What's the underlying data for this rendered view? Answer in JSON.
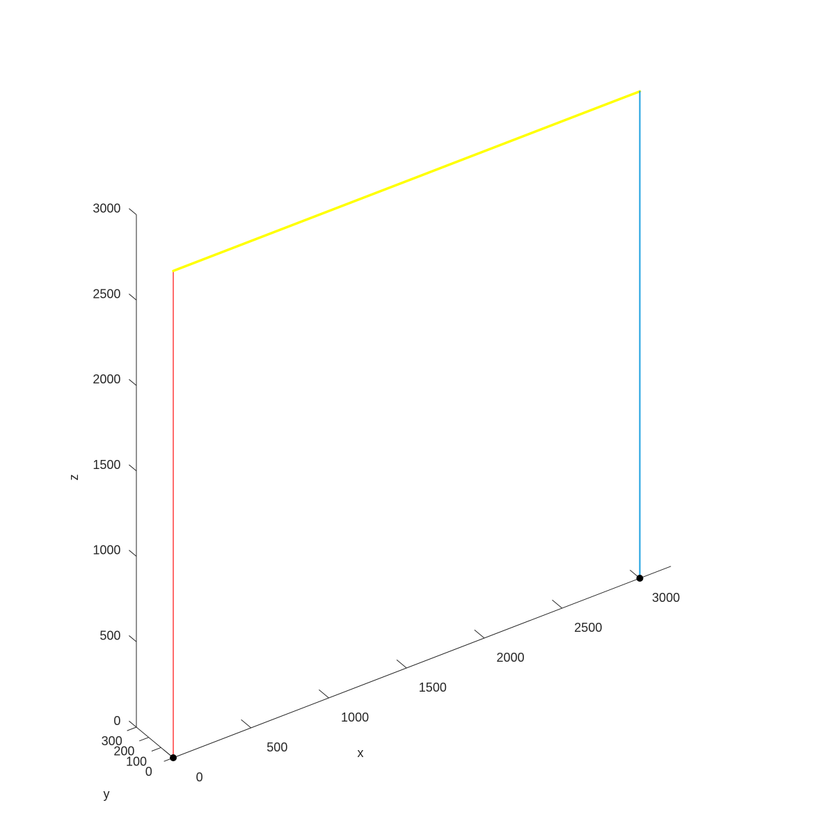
{
  "chart_data": {
    "type": "line",
    "projection": "3d",
    "title": "",
    "xlabel": "x",
    "ylabel": "y",
    "zlabel": "z",
    "xlim": [
      0,
      3200
    ],
    "ylim": [
      0,
      300
    ],
    "zlim": [
      0,
      3000
    ],
    "xticks": [
      0,
      500,
      1000,
      1500,
      2000,
      2500,
      3000
    ],
    "yticks": [
      0,
      100,
      200,
      300
    ],
    "zticks": [
      0,
      500,
      1000,
      1500,
      2000,
      2500,
      3000
    ],
    "grid": false,
    "legend": "none",
    "series": [
      {
        "color": "#ff6b6b",
        "points": [
          [
            0,
            0,
            0
          ],
          [
            0,
            0,
            2850
          ]
        ]
      },
      {
        "color": "#ffff00",
        "points": [
          [
            0,
            0,
            2850
          ],
          [
            3000,
            0,
            2850
          ]
        ]
      },
      {
        "color": "#1a9fe0",
        "points": [
          [
            3000,
            0,
            0
          ],
          [
            3000,
            0,
            2850
          ]
        ]
      }
    ],
    "markers": {
      "color": "#000000",
      "points": [
        [
          0,
          0,
          0
        ],
        [
          3000,
          0,
          0
        ]
      ]
    }
  }
}
